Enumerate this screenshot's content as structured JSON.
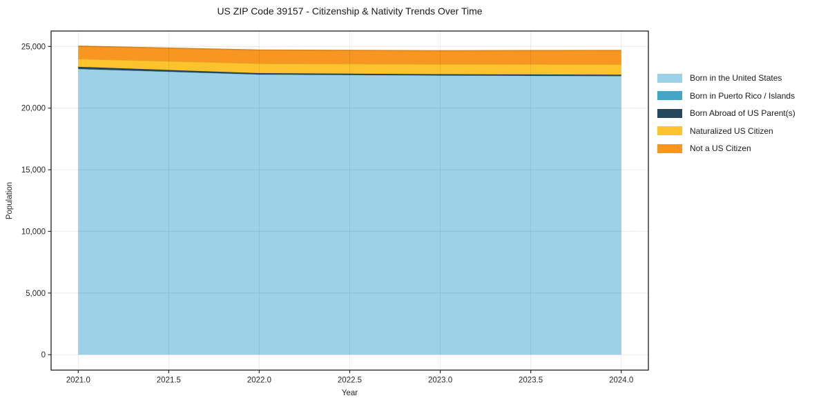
{
  "chart_data": {
    "type": "area",
    "stacked": true,
    "title": "US ZIP Code 39157 - Citizenship & Nativity Trends Over Time",
    "xlabel": "Year",
    "ylabel": "Population",
    "x": [
      2021,
      2022,
      2023,
      2024
    ],
    "series": [
      {
        "name": "Born in the United States",
        "color": "#9cd1e8",
        "values": [
          23150,
          22700,
          22620,
          22570
        ]
      },
      {
        "name": "Born in Puerto Rico / Islands",
        "color": "#44a5c7",
        "values": [
          20,
          20,
          20,
          20
        ]
      },
      {
        "name": "Born Abroad of US Parent(s)",
        "color": "#27485c",
        "values": [
          180,
          120,
          110,
          120
        ]
      },
      {
        "name": "Naturalized US Citizen",
        "color": "#fcc32d",
        "values": [
          650,
          780,
          820,
          840
        ]
      },
      {
        "name": "Not a US Citizen",
        "color": "#f79620",
        "values": [
          1025,
          1090,
          1085,
          1125
        ]
      }
    ],
    "xlim": [
      2020.85,
      2024.15
    ],
    "ylim": [
      -1250,
      26250
    ],
    "x_ticks": {
      "values": [
        2021,
        2021.5,
        2022,
        2022.5,
        2023,
        2023.5,
        2024
      ],
      "labels": [
        "2021.0",
        "2021.5",
        "2022.0",
        "2022.5",
        "2023.0",
        "2023.5",
        "2024.0"
      ]
    },
    "y_ticks": {
      "values": [
        0,
        5000,
        10000,
        15000,
        20000,
        25000
      ],
      "labels": [
        "0",
        "5,000",
        "10,000",
        "15,000",
        "20,000",
        "25,000"
      ]
    },
    "grid": true,
    "legend_position": "right",
    "axis_color": "#2b2b2b",
    "grid_color": "rgba(0,0,0,0.08)",
    "tick_label_color": "#262626"
  }
}
